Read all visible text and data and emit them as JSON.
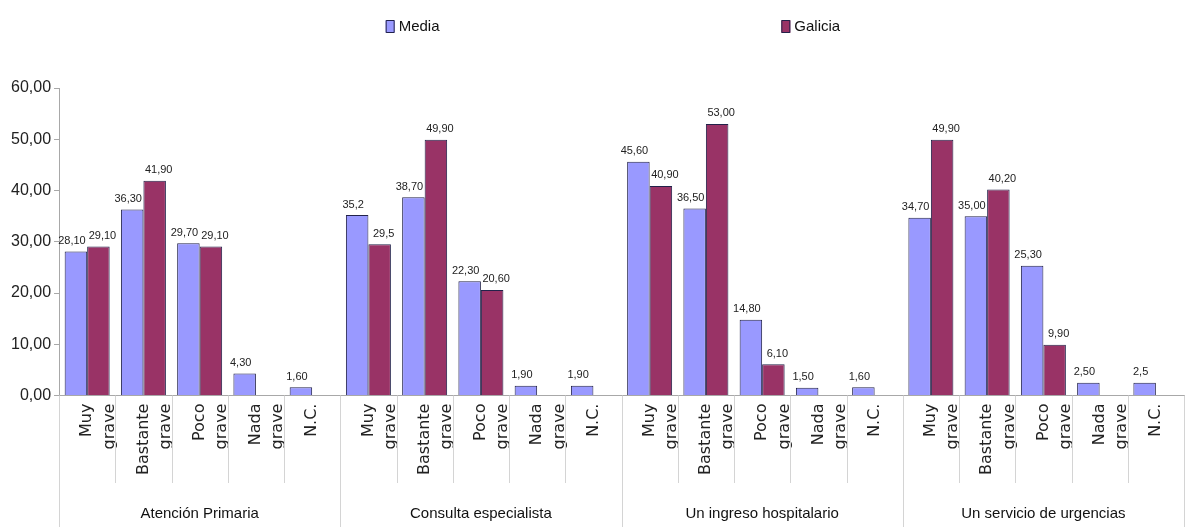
{
  "chart_data": {
    "type": "bar",
    "categories": [
      "Muy grave",
      "Bastante grave",
      "Poco grave",
      "Nada grave",
      "N.C.",
      "Muy grave",
      "Bastante grave",
      "Poco grave",
      "Nada grave",
      "N.C.",
      "Muy grave",
      "Bastante grave",
      "Poco grave",
      "Nada grave",
      "N.C.",
      "Muy grave",
      "Bastante grave",
      "Poco grave",
      "Nada grave",
      "N.C."
    ],
    "series": [
      {
        "name": "Media",
        "color": "#9999ff",
        "values": [
          28.1,
          36.3,
          29.7,
          4.3,
          1.6,
          35.2,
          38.7,
          22.3,
          1.9,
          1.9,
          45.6,
          36.5,
          14.8,
          1.5,
          1.6,
          34.7,
          35.0,
          25.3,
          2.5,
          2.5
        ],
        "value_labels": [
          "28,10",
          "36,30",
          "29,70",
          "4,30",
          "1,60",
          "35,2",
          "38,70",
          "22,30",
          "1,90",
          "1,90",
          "45,60",
          "36,50",
          "14,80",
          "1,50",
          "1,60",
          "34,70",
          "35,00",
          "25,30",
          "2,50",
          "2,5"
        ]
      },
      {
        "name": "Galicia",
        "color": "#993366",
        "values": [
          29.1,
          41.9,
          29.1,
          null,
          null,
          29.5,
          49.9,
          20.6,
          null,
          null,
          40.9,
          53.0,
          6.1,
          null,
          null,
          49.9,
          40.2,
          9.9,
          null,
          null
        ],
        "value_labels": [
          "29,10",
          "41,90",
          "29,10",
          null,
          null,
          "29,5",
          "49,90",
          "20,60",
          null,
          null,
          "40,90",
          "53,00",
          "6,10",
          null,
          null,
          "49,90",
          "40,20",
          "9,90",
          null,
          null
        ]
      }
    ],
    "ylim": [
      0,
      60
    ],
    "yticks": [
      {
        "value": 0,
        "label": "0,00"
      },
      {
        "value": 10,
        "label": "10,00"
      },
      {
        "value": 20,
        "label": "20,00"
      },
      {
        "value": 30,
        "label": "30,00"
      },
      {
        "value": 40,
        "label": "40,00"
      },
      {
        "value": 50,
        "label": "50,00"
      },
      {
        "value": 60,
        "label": "60,00"
      }
    ],
    "annotations": [
      "Atención Primaria",
      "Consulta especialista",
      "Un ingreso hospitalario",
      "Un servicio de urgencias"
    ],
    "legend": "top",
    "grid": false
  }
}
